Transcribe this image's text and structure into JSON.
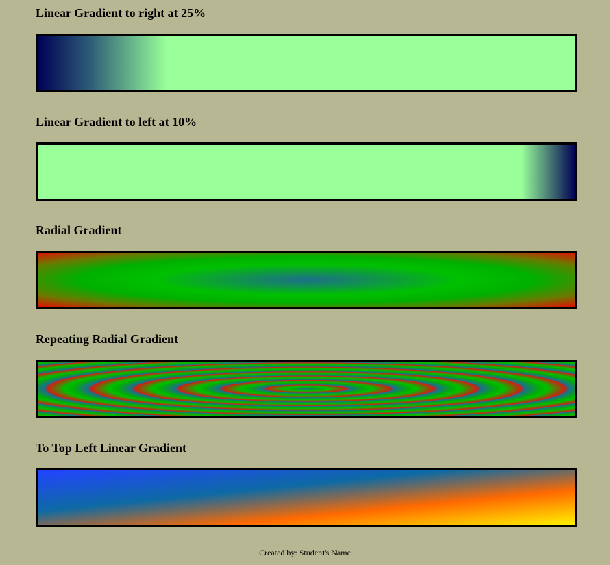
{
  "sections": [
    {
      "heading": "Linear Gradient to right at 25%"
    },
    {
      "heading": "Linear Gradient to left at 10%"
    },
    {
      "heading": "Radial Gradient"
    },
    {
      "heading": "Repeating Radial Gradient"
    },
    {
      "heading": "To Top Left Linear Gradient"
    }
  ],
  "footer": {
    "text": "Created by: Student's Name"
  },
  "colors": {
    "page_background": "#b7b794",
    "light_green": "#99ff99",
    "navy": "#000055",
    "green": "#00c000",
    "red": "#e01000",
    "blue": "#2244ff",
    "orange": "#ff6a00",
    "yellow": "#fff000"
  }
}
